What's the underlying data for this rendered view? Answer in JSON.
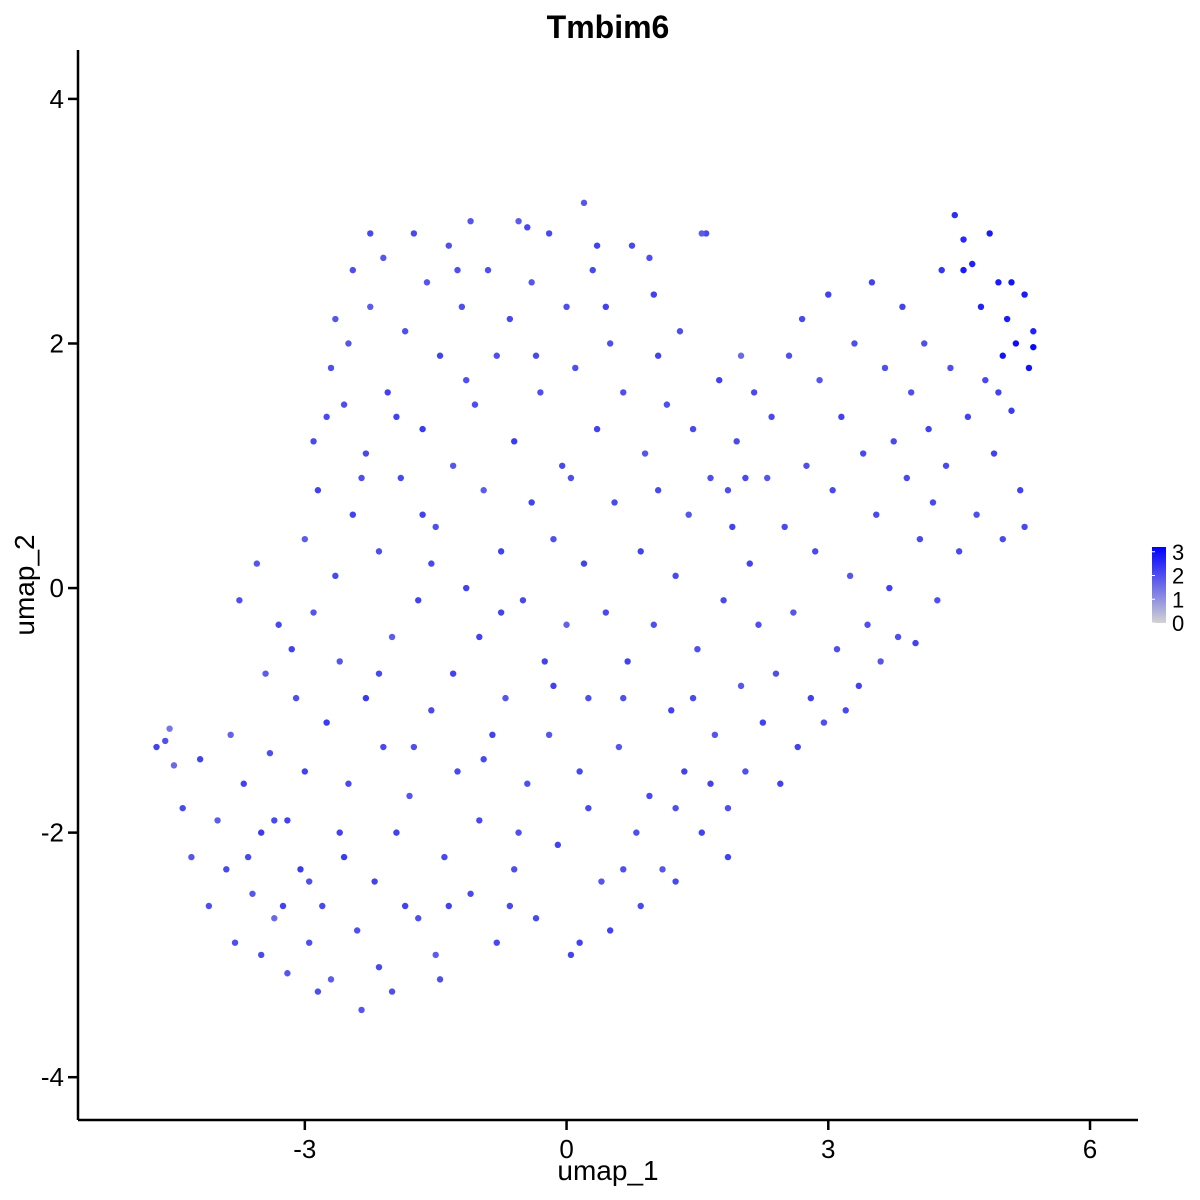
{
  "chart_data": {
    "type": "scatter",
    "title": "Tmbim6",
    "xlabel": "umap_1",
    "ylabel": "umap_2",
    "xlim": [
      -5.6,
      6.55
    ],
    "ylim": [
      -4.35,
      4.4
    ],
    "xticks": [
      -3,
      0,
      3,
      6
    ],
    "yticks": [
      -4,
      -2,
      0,
      2,
      4
    ],
    "xtick_labels": [
      "-3",
      "0",
      "3",
      "6"
    ],
    "ytick_labels": [
      "-4",
      "-2",
      "0",
      "2",
      "4"
    ],
    "grid": false,
    "legend": {
      "placement": "right",
      "ticks": [
        0,
        1,
        2,
        3
      ],
      "tick_labels": [
        "0",
        "1",
        "2",
        "3"
      ],
      "range": [
        0,
        3.2
      ],
      "low_color": "#d3d3d3",
      "high_color": "#0000ff"
    },
    "color_scale": {
      "low": "#d3d3d3",
      "high": "#0000ff",
      "min": 0,
      "max": 3.2
    },
    "points": [
      [
        -4.7,
        -1.3,
        2.2
      ],
      [
        -4.6,
        -1.25,
        2.0
      ],
      [
        -4.55,
        -1.15,
        1.4
      ],
      [
        -4.5,
        -1.45,
        1.6
      ],
      [
        -4.4,
        -1.8,
        2.1
      ],
      [
        -4.3,
        -2.2,
        1.9
      ],
      [
        -4.2,
        -1.4,
        2.2
      ],
      [
        -4.1,
        -2.6,
        2.0
      ],
      [
        -4.0,
        -1.9,
        1.8
      ],
      [
        -3.9,
        -2.3,
        2.1
      ],
      [
        -3.85,
        -1.2,
        1.7
      ],
      [
        -3.8,
        -2.9,
        2.0
      ],
      [
        -3.7,
        -1.6,
        2.2
      ],
      [
        -3.6,
        -2.5,
        1.9
      ],
      [
        -3.5,
        -2.0,
        2.3
      ],
      [
        -3.5,
        -3.0,
        2.1
      ],
      [
        -3.45,
        -0.7,
        1.8
      ],
      [
        -3.4,
        -1.35,
        2.0
      ],
      [
        -3.35,
        -2.7,
        1.6
      ],
      [
        -3.3,
        -0.3,
        2.1
      ],
      [
        -3.2,
        -1.9,
        2.2
      ],
      [
        -3.2,
        -3.15,
        1.9
      ],
      [
        -3.1,
        -0.9,
        2.0
      ],
      [
        -3.05,
        -2.3,
        2.3
      ],
      [
        -3.0,
        0.4,
        1.8
      ],
      [
        -3.0,
        -1.5,
        2.2
      ],
      [
        -2.95,
        -2.9,
        2.0
      ],
      [
        -2.9,
        1.2,
        2.1
      ],
      [
        -2.9,
        -0.2,
        1.9
      ],
      [
        -2.85,
        0.8,
        2.2
      ],
      [
        -2.8,
        -2.6,
        2.1
      ],
      [
        -2.75,
        -1.1,
        2.3
      ],
      [
        -2.7,
        1.8,
        2.0
      ],
      [
        -2.7,
        -3.2,
        1.8
      ],
      [
        -2.65,
        0.1,
        2.1
      ],
      [
        -2.6,
        -0.6,
        1.9
      ],
      [
        -2.6,
        -2.0,
        2.2
      ],
      [
        -2.55,
        1.5,
        2.0
      ],
      [
        -2.5,
        2.0,
        1.9
      ],
      [
        -2.5,
        -1.6,
        2.1
      ],
      [
        -2.45,
        0.6,
        2.2
      ],
      [
        -2.4,
        -2.8,
        2.0
      ],
      [
        -2.35,
        -3.45,
        1.9
      ],
      [
        -2.3,
        1.1,
        2.1
      ],
      [
        -2.3,
        -0.9,
        2.3
      ],
      [
        -2.25,
        2.3,
        1.8
      ],
      [
        -2.2,
        -2.4,
        2.2
      ],
      [
        -2.15,
        0.3,
        2.0
      ],
      [
        -2.1,
        -1.3,
        2.1
      ],
      [
        -2.1,
        2.7,
        1.9
      ],
      [
        -2.05,
        1.6,
        2.2
      ],
      [
        -2.0,
        -0.4,
        1.8
      ],
      [
        -2.0,
        -3.3,
        2.0
      ],
      [
        -1.95,
        -2.0,
        2.2
      ],
      [
        -1.9,
        0.9,
        2.1
      ],
      [
        -1.85,
        2.1,
        2.0
      ],
      [
        -1.8,
        -1.7,
        1.9
      ],
      [
        -1.75,
        2.9,
        2.1
      ],
      [
        -1.7,
        -0.1,
        2.2
      ],
      [
        -1.7,
        -2.7,
        2.0
      ],
      [
        -1.65,
        1.3,
        2.3
      ],
      [
        -1.6,
        2.5,
        1.9
      ],
      [
        -1.55,
        -1.0,
        2.1
      ],
      [
        -1.5,
        0.5,
        2.0
      ],
      [
        -1.5,
        -3.0,
        1.8
      ],
      [
        -1.45,
        1.9,
        2.2
      ],
      [
        -1.4,
        -2.2,
        2.1
      ],
      [
        -1.35,
        2.8,
        2.0
      ],
      [
        -1.3,
        -0.7,
        2.2
      ],
      [
        -1.3,
        1.0,
        1.9
      ],
      [
        -1.25,
        -1.5,
        2.1
      ],
      [
        -1.2,
        2.3,
        2.0
      ],
      [
        -1.15,
        0.0,
        2.2
      ],
      [
        -1.1,
        -2.5,
        2.1
      ],
      [
        -1.1,
        3.0,
        1.9
      ],
      [
        -1.05,
        1.5,
        2.0
      ],
      [
        -1.0,
        -0.4,
        2.2
      ],
      [
        -1.0,
        -1.9,
        2.1
      ],
      [
        -0.95,
        0.8,
        1.8
      ],
      [
        -0.9,
        2.6,
        2.0
      ],
      [
        -0.85,
        -1.2,
        2.2
      ],
      [
        -0.8,
        -2.9,
        2.1
      ],
      [
        -0.8,
        1.9,
        2.0
      ],
      [
        -0.75,
        0.3,
        2.2
      ],
      [
        -0.7,
        -0.9,
        1.9
      ],
      [
        -0.65,
        2.2,
        2.1
      ],
      [
        -0.6,
        -2.3,
        2.0
      ],
      [
        -0.6,
        1.2,
        2.3
      ],
      [
        -0.55,
        3.0,
        1.8
      ],
      [
        -0.5,
        -0.1,
        2.1
      ],
      [
        -0.45,
        -1.6,
        2.0
      ],
      [
        -0.4,
        0.7,
        2.2
      ],
      [
        -0.4,
        2.5,
        1.9
      ],
      [
        -0.35,
        -2.7,
        2.1
      ],
      [
        -0.3,
        1.6,
        2.0
      ],
      [
        -0.25,
        -0.6,
        2.2
      ],
      [
        -0.2,
        2.9,
        2.1
      ],
      [
        -0.2,
        -1.2,
        1.9
      ],
      [
        -0.15,
        0.4,
        2.0
      ],
      [
        -0.1,
        -2.1,
        2.2
      ],
      [
        -0.05,
        1.0,
        2.1
      ],
      [
        0.0,
        2.3,
        2.0
      ],
      [
        0.0,
        -0.3,
        1.7
      ],
      [
        0.05,
        -3.0,
        2.2
      ],
      [
        0.1,
        1.8,
        2.0
      ],
      [
        0.15,
        -1.5,
        2.1
      ],
      [
        0.2,
        3.15,
        1.9
      ],
      [
        0.2,
        0.2,
        2.2
      ],
      [
        0.25,
        -0.9,
        2.0
      ],
      [
        0.3,
        2.6,
        2.1
      ],
      [
        0.35,
        1.3,
        2.2
      ],
      [
        0.4,
        -2.4,
        1.9
      ],
      [
        0.45,
        -0.2,
        2.1
      ],
      [
        0.5,
        2.0,
        2.0
      ],
      [
        0.5,
        -2.8,
        2.2
      ],
      [
        0.55,
        0.7,
        2.1
      ],
      [
        0.6,
        -1.3,
        1.9
      ],
      [
        0.65,
        1.6,
        2.0
      ],
      [
        0.7,
        -0.6,
        2.2
      ],
      [
        0.75,
        2.8,
        2.1
      ],
      [
        0.8,
        -2.0,
        2.0
      ],
      [
        0.85,
        0.3,
        2.2
      ],
      [
        0.9,
        1.1,
        1.9
      ],
      [
        0.95,
        -1.7,
        2.1
      ],
      [
        1.0,
        -0.3,
        2.0
      ],
      [
        1.0,
        2.4,
        2.2
      ],
      [
        1.05,
        0.8,
        2.1
      ],
      [
        1.1,
        -2.3,
        1.9
      ],
      [
        1.15,
        1.5,
        2.0
      ],
      [
        1.2,
        -1.0,
        2.2
      ],
      [
        1.25,
        0.1,
        2.1
      ],
      [
        1.3,
        2.1,
        2.0
      ],
      [
        1.35,
        -1.5,
        2.2
      ],
      [
        1.4,
        0.6,
        1.9
      ],
      [
        1.45,
        1.3,
        2.1
      ],
      [
        1.5,
        -0.5,
        2.0
      ],
      [
        1.55,
        -2.0,
        2.2
      ],
      [
        1.6,
        2.9,
        2.1
      ],
      [
        1.65,
        0.9,
        2.0
      ],
      [
        1.7,
        -1.2,
        1.9
      ],
      [
        1.75,
        1.7,
        2.2
      ],
      [
        1.8,
        -0.1,
        2.1
      ],
      [
        1.85,
        -1.8,
        2.0
      ],
      [
        1.9,
        0.5,
        2.2
      ],
      [
        1.95,
        1.2,
        2.1
      ],
      [
        2.0,
        -0.8,
        1.9
      ],
      [
        2.0,
        1.9,
        1.6
      ],
      [
        2.05,
        -1.5,
        2.0
      ],
      [
        2.1,
        0.2,
        2.2
      ],
      [
        2.15,
        1.6,
        2.1
      ],
      [
        2.2,
        -0.3,
        2.0
      ],
      [
        2.25,
        -1.1,
        2.2
      ],
      [
        2.3,
        0.9,
        1.9
      ],
      [
        2.35,
        1.4,
        2.1
      ],
      [
        2.4,
        -0.7,
        2.0
      ],
      [
        2.45,
        -1.6,
        2.2
      ],
      [
        2.5,
        0.5,
        2.1
      ],
      [
        2.55,
        1.9,
        2.0
      ],
      [
        2.6,
        -0.2,
        1.9
      ],
      [
        2.65,
        -1.3,
        2.2
      ],
      [
        2.7,
        2.2,
        2.1
      ],
      [
        2.75,
        1.0,
        2.0
      ],
      [
        2.8,
        -0.9,
        2.2
      ],
      [
        2.85,
        0.3,
        2.1
      ],
      [
        2.9,
        1.7,
        1.9
      ],
      [
        2.95,
        -1.1,
        2.0
      ],
      [
        3.0,
        2.4,
        2.2
      ],
      [
        3.05,
        0.8,
        2.1
      ],
      [
        3.1,
        -0.5,
        2.0
      ],
      [
        3.15,
        1.4,
        2.2
      ],
      [
        3.2,
        -1.0,
        2.1
      ],
      [
        3.25,
        0.1,
        1.9
      ],
      [
        3.3,
        2.0,
        2.0
      ],
      [
        3.35,
        -0.8,
        2.2
      ],
      [
        3.4,
        1.1,
        2.1
      ],
      [
        3.45,
        -0.3,
        2.0
      ],
      [
        3.5,
        2.5,
        2.2
      ],
      [
        3.55,
        0.6,
        2.1
      ],
      [
        3.6,
        -0.6,
        1.9
      ],
      [
        3.65,
        1.8,
        2.0
      ],
      [
        3.7,
        0.0,
        2.2
      ],
      [
        3.75,
        1.2,
        2.1
      ],
      [
        3.8,
        -0.4,
        2.0
      ],
      [
        3.85,
        2.3,
        2.2
      ],
      [
        3.9,
        0.9,
        2.1
      ],
      [
        3.95,
        1.6,
        2.0
      ],
      [
        4.0,
        -0.45,
        2.2
      ],
      [
        4.05,
        0.4,
        2.1
      ],
      [
        4.1,
        2.0,
        2.0
      ],
      [
        4.15,
        1.3,
        2.2
      ],
      [
        4.2,
        0.7,
        2.1
      ],
      [
        4.25,
        -0.1,
        2.0
      ],
      [
        4.3,
        2.6,
        2.4
      ],
      [
        4.35,
        1.0,
        2.1
      ],
      [
        4.4,
        1.8,
        2.0
      ],
      [
        4.45,
        3.05,
        2.5
      ],
      [
        4.5,
        0.3,
        2.1
      ],
      [
        4.55,
        2.85,
        2.6
      ],
      [
        4.6,
        1.4,
        2.2
      ],
      [
        4.65,
        2.65,
        2.7
      ],
      [
        4.7,
        0.6,
        2.0
      ],
      [
        4.75,
        2.3,
        2.7
      ],
      [
        4.8,
        1.7,
        2.1
      ],
      [
        4.85,
        2.9,
        2.8
      ],
      [
        4.9,
        1.1,
        2.2
      ],
      [
        4.95,
        2.5,
        2.8
      ],
      [
        5.0,
        1.9,
        2.9
      ],
      [
        5.0,
        0.4,
        2.1
      ],
      [
        5.05,
        2.2,
        2.8
      ],
      [
        5.1,
        1.45,
        2.3
      ],
      [
        5.15,
        2.0,
        3.0
      ],
      [
        5.2,
        0.8,
        2.2
      ],
      [
        5.25,
        2.4,
        2.8
      ],
      [
        5.3,
        1.8,
        2.9
      ],
      [
        5.35,
        2.1,
        2.7
      ],
      [
        5.35,
        1.97,
        3.1
      ],
      [
        5.25,
        0.5,
        2.1
      ],
      [
        4.95,
        1.6,
        2.2
      ],
      [
        5.1,
        2.5,
        2.9
      ],
      [
        4.55,
        2.6,
        2.8
      ],
      [
        -3.75,
        -0.1,
        2.0
      ],
      [
        -3.55,
        0.2,
        1.9
      ],
      [
        -3.35,
        -1.9,
        2.1
      ],
      [
        -3.15,
        -0.5,
        2.2
      ],
      [
        -2.95,
        -2.4,
        2.0
      ],
      [
        -2.75,
        1.4,
        2.1
      ],
      [
        -2.55,
        -2.2,
        2.3
      ],
      [
        -2.35,
        0.9,
        2.0
      ],
      [
        -2.15,
        -0.7,
        2.1
      ],
      [
        -1.95,
        1.4,
        2.2
      ],
      [
        -1.75,
        -1.3,
        2.0
      ],
      [
        -1.55,
        0.2,
        2.1
      ],
      [
        -1.35,
        -2.6,
        2.2
      ],
      [
        -1.15,
        1.7,
        2.0
      ],
      [
        -0.95,
        -1.4,
        2.1
      ],
      [
        -0.75,
        -0.2,
        2.2
      ],
      [
        -0.55,
        -2.0,
        2.0
      ],
      [
        -0.35,
        1.9,
        2.1
      ],
      [
        -0.15,
        -0.8,
        2.2
      ],
      [
        0.05,
        0.9,
        2.0
      ],
      [
        0.25,
        -1.8,
        2.1
      ],
      [
        0.45,
        2.3,
        2.2
      ],
      [
        0.65,
        -0.9,
        2.0
      ],
      [
        0.85,
        -2.6,
        2.1
      ],
      [
        1.05,
        1.9,
        2.2
      ],
      [
        1.25,
        -1.8,
        2.0
      ],
      [
        1.45,
        -0.9,
        2.1
      ],
      [
        1.65,
        -1.6,
        2.2
      ],
      [
        1.85,
        0.8,
        2.0
      ],
      [
        2.05,
        0.9,
        2.1
      ],
      [
        -2.65,
        2.2,
        1.9
      ],
      [
        -2.45,
        2.6,
        2.0
      ],
      [
        -2.25,
        2.9,
        2.1
      ],
      [
        -1.65,
        0.6,
        2.2
      ],
      [
        -1.25,
        2.6,
        2.0
      ],
      [
        -0.45,
        2.95,
        2.1
      ],
      [
        0.35,
        2.8,
        2.2
      ],
      [
        0.95,
        2.7,
        2.0
      ],
      [
        1.55,
        2.9,
        1.8
      ],
      [
        -3.65,
        -2.2,
        2.1
      ],
      [
        -3.25,
        -2.6,
        2.2
      ],
      [
        -2.85,
        -3.3,
        2.0
      ],
      [
        -2.15,
        -3.1,
        2.1
      ],
      [
        -1.85,
        -2.6,
        2.2
      ],
      [
        -1.45,
        -3.2,
        2.0
      ],
      [
        -0.65,
        -2.6,
        2.1
      ],
      [
        0.15,
        -2.9,
        2.2
      ],
      [
        0.65,
        -2.3,
        2.0
      ],
      [
        1.25,
        -2.4,
        2.1
      ],
      [
        1.85,
        -2.2,
        2.2
      ]
    ]
  }
}
